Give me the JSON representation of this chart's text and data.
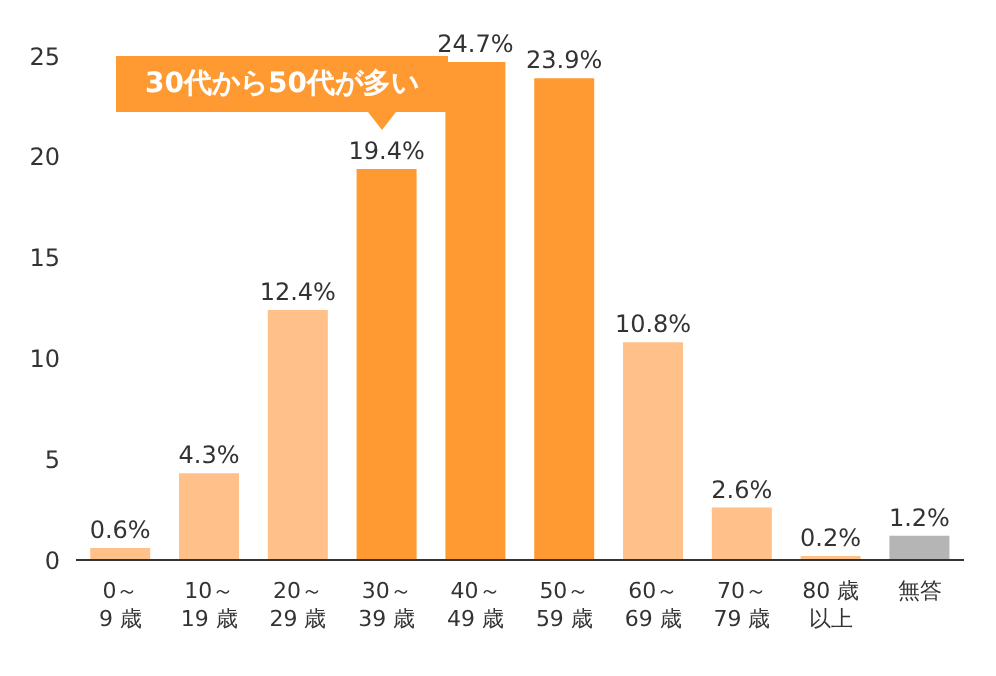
{
  "chart_data": {
    "type": "bar",
    "categories": [
      "0～\n9 歳",
      "10～\n19 歳",
      "20～\n29 歳",
      "30～\n39 歳",
      "40～\n49 歳",
      "50～\n59 歳",
      "60～\n69 歳",
      "70～\n79 歳",
      "80 歳以上",
      "無答"
    ],
    "values": [
      0.6,
      4.3,
      12.4,
      19.4,
      24.7,
      23.9,
      10.8,
      2.6,
      0.2,
      1.2
    ],
    "colors": [
      "#ffc08a",
      "#ffc08a",
      "#ffc08a",
      "#ff9a33",
      "#ff9a33",
      "#ff9a33",
      "#ffc08a",
      "#ffc08a",
      "#ffc08a",
      "#b5b5b5"
    ],
    "value_labels": [
      "0.6%",
      "4.3%",
      "12.4%",
      "19.4%",
      "24.7%",
      "23.9%",
      "10.8%",
      "2.6%",
      "0.2%",
      "1.2%"
    ],
    "ylim": [
      0,
      25
    ],
    "yticks": [
      0,
      5,
      10,
      15,
      20,
      25
    ],
    "annotations": [
      "30代から50代が多い"
    ]
  }
}
